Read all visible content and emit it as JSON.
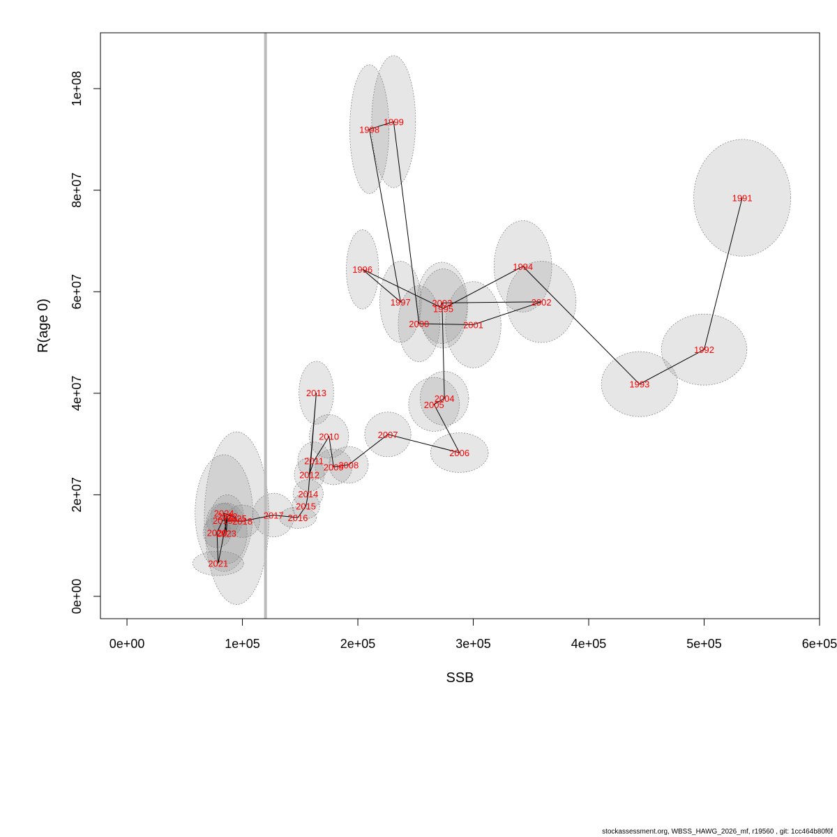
{
  "chart_data": {
    "type": "scatter",
    "title": "",
    "xlabel": "SSB",
    "ylabel": "R(age 0)",
    "xlim": [
      -23000,
      600000
    ],
    "ylim": [
      -4400000,
      111000000
    ],
    "x_ticks": [
      {
        "value": 0,
        "label": "0e+00"
      },
      {
        "value": 100000,
        "label": "1e+05"
      },
      {
        "value": 200000,
        "label": "2e+05"
      },
      {
        "value": 300000,
        "label": "3e+05"
      },
      {
        "value": 400000,
        "label": "4e+05"
      },
      {
        "value": 500000,
        "label": "5e+05"
      },
      {
        "value": 600000,
        "label": "6e+05"
      }
    ],
    "y_ticks": [
      {
        "value": 0,
        "label": "0e+00"
      },
      {
        "value": 20000000,
        "label": "2e+07"
      },
      {
        "value": 40000000,
        "label": "4e+07"
      },
      {
        "value": 60000000,
        "label": "6e+07"
      },
      {
        "value": 80000000,
        "label": "8e+07"
      },
      {
        "value": 100000000,
        "label": "1e+08"
      }
    ],
    "reference_line": {
      "orientation": "vertical",
      "x": 120000,
      "color": "#bbbbbb"
    },
    "label_color": "#ff0000",
    "line_color": "#000000",
    "ellipse_fill": "#808080",
    "ellipse_stroke": "#888888",
    "grid": false,
    "points": [
      {
        "year": "1991",
        "ssb": 533000,
        "r": 78500000,
        "ssb_sd": 42000,
        "r_sd": 11500000
      },
      {
        "year": "1992",
        "ssb": 500000,
        "r": 48600000,
        "ssb_sd": 37000,
        "r_sd": 7000000
      },
      {
        "year": "1993",
        "ssb": 444000,
        "r": 41800000,
        "ssb_sd": 33000,
        "r_sd": 6400000
      },
      {
        "year": "1994",
        "ssb": 343000,
        "r": 65000000,
        "ssb_sd": 25000,
        "r_sd": 9000000
      },
      {
        "year": "1995",
        "ssb": 274000,
        "r": 56700000,
        "ssb_sd": 21000,
        "r_sd": 7800000
      },
      {
        "year": "1996",
        "ssb": 204000,
        "r": 64400000,
        "ssb_sd": 14000,
        "r_sd": 7800000
      },
      {
        "year": "1997",
        "ssb": 237000,
        "r": 58000000,
        "ssb_sd": 18000,
        "r_sd": 8000000
      },
      {
        "year": "1998",
        "ssb": 210000,
        "r": 92000000,
        "ssb_sd": 17000,
        "r_sd": 12700000
      },
      {
        "year": "1999",
        "ssb": 231000,
        "r": 93500000,
        "ssb_sd": 19000,
        "r_sd": 13000000
      },
      {
        "year": "2000",
        "ssb": 253000,
        "r": 53700000,
        "ssb_sd": 18000,
        "r_sd": 7500000
      },
      {
        "year": "2001",
        "ssb": 300000,
        "r": 53500000,
        "ssb_sd": 24000,
        "r_sd": 8500000
      },
      {
        "year": "2002",
        "ssb": 359000,
        "r": 58000000,
        "ssb_sd": 30000,
        "r_sd": 8000000
      },
      {
        "year": "2003",
        "ssb": 273000,
        "r": 57800000,
        "ssb_sd": 22000,
        "r_sd": 8000000
      },
      {
        "year": "2004",
        "ssb": 275000,
        "r": 39000000,
        "ssb_sd": 21000,
        "r_sd": 5300000
      },
      {
        "year": "2005",
        "ssb": 266000,
        "r": 37800000,
        "ssb_sd": 22000,
        "r_sd": 5300000
      },
      {
        "year": "2006",
        "ssb": 288000,
        "r": 28300000,
        "ssb_sd": 25000,
        "r_sd": 3900000
      },
      {
        "year": "2007",
        "ssb": 226000,
        "r": 31900000,
        "ssb_sd": 20000,
        "r_sd": 4400000
      },
      {
        "year": "2008",
        "ssb": 192000,
        "r": 25900000,
        "ssb_sd": 17000,
        "r_sd": 3600000
      },
      {
        "year": "2009",
        "ssb": 179000,
        "r": 25500000,
        "ssb_sd": 16000,
        "r_sd": 3500000
      },
      {
        "year": "2010",
        "ssb": 175000,
        "r": 31500000,
        "ssb_sd": 17000,
        "r_sd": 4300000
      },
      {
        "year": "2011",
        "ssb": 162000,
        "r": 26700000,
        "ssb_sd": 14000,
        "r_sd": 3700000
      },
      {
        "year": "2012",
        "ssb": 158000,
        "r": 24000000,
        "ssb_sd": 13000,
        "r_sd": 3300000
      },
      {
        "year": "2013",
        "ssb": 164000,
        "r": 40100000,
        "ssb_sd": 15000,
        "r_sd": 6200000
      },
      {
        "year": "2014",
        "ssb": 157000,
        "r": 20200000,
        "ssb_sd": 13000,
        "r_sd": 2800000
      },
      {
        "year": "2015",
        "ssb": 155000,
        "r": 17800000,
        "ssb_sd": 12000,
        "r_sd": 2500000
      },
      {
        "year": "2016",
        "ssb": 148000,
        "r": 15500000,
        "ssb_sd": 16000,
        "r_sd": 2100000
      },
      {
        "year": "2017",
        "ssb": 127000,
        "r": 16000000,
        "ssb_sd": 18000,
        "r_sd": 4300000
      },
      {
        "year": "2018",
        "ssb": 100000,
        "r": 14800000,
        "ssb_sd": 15000,
        "r_sd": 3200000
      },
      {
        "year": "2019",
        "ssb": 83000,
        "r": 15000000,
        "ssb_sd": 14000,
        "r_sd": 3300000
      },
      {
        "year": "2020",
        "ssb": 78000,
        "r": 12600000,
        "ssb_sd": 12000,
        "r_sd": 3000000
      },
      {
        "year": "2021",
        "ssb": 79000,
        "r": 6500000,
        "ssb_sd": 22000,
        "r_sd": 2400000
      },
      {
        "year": "2022",
        "ssb": 87000,
        "r": 15800000,
        "ssb_sd": 14000,
        "r_sd": 4200000
      },
      {
        "year": "2023",
        "ssb": 86000,
        "r": 12400000,
        "ssb_sd": 18000,
        "r_sd": 6000000
      },
      {
        "year": "2024",
        "ssb": 84000,
        "r": 16400000,
        "ssb_sd": 25000,
        "r_sd": 11500000
      },
      {
        "year": "2025",
        "ssb": 95000,
        "r": 15400000,
        "ssb_sd": 28000,
        "r_sd": 17000000
      }
    ]
  },
  "footer": "stockassessment.org, WBSS_HAWG_2026_mf, r19560 , git: 1cc464b80f6f"
}
